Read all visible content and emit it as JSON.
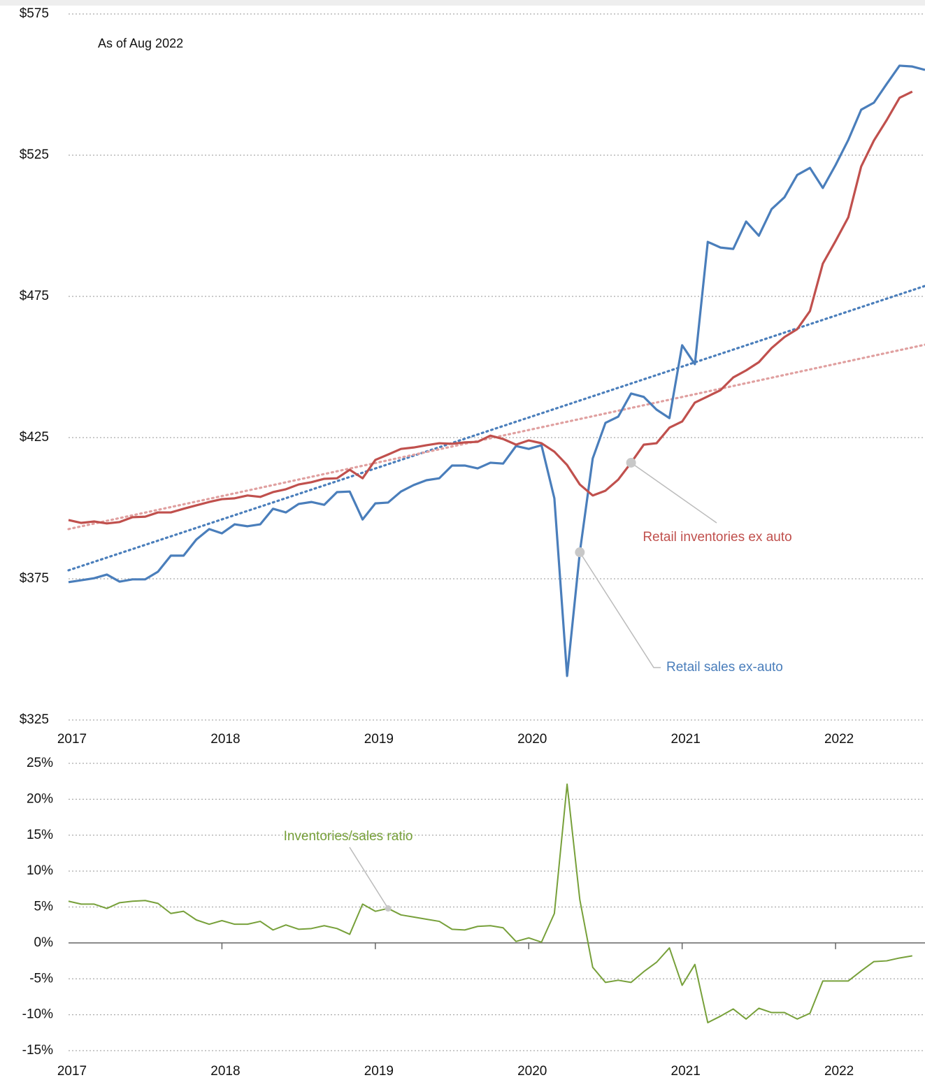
{
  "chart_data": [
    {
      "type": "line",
      "subtitle": "As of Aug 2022",
      "x": [
        2017,
        2017.083,
        2017.167,
        2017.25,
        2017.333,
        2017.417,
        2017.5,
        2017.583,
        2017.667,
        2017.75,
        2017.833,
        2017.917,
        2018,
        2018.083,
        2018.167,
        2018.25,
        2018.333,
        2018.417,
        2018.5,
        2018.583,
        2018.667,
        2018.75,
        2018.833,
        2018.917,
        2019,
        2019.083,
        2019.167,
        2019.25,
        2019.333,
        2019.417,
        2019.5,
        2019.583,
        2019.667,
        2019.75,
        2019.833,
        2019.917,
        2020,
        2020.083,
        2020.167,
        2020.25,
        2020.333,
        2020.417,
        2020.5,
        2020.583,
        2020.667,
        2020.75,
        2020.833,
        2020.917,
        2021,
        2021.083,
        2021.167,
        2021.25,
        2021.333,
        2021.417,
        2021.5,
        2021.583,
        2021.667,
        2021.75,
        2021.833,
        2021.917,
        2022,
        2022.083,
        2022.167,
        2022.25,
        2022.333,
        2022.417,
        2022.5,
        2022.583
      ],
      "xlim": [
        2017,
        2022.583
      ],
      "xticks": [
        2017,
        2018,
        2019,
        2020,
        2021,
        2022
      ],
      "ylim": [
        325,
        575
      ],
      "yticks": [
        {
          "value": 325,
          "label": "$325"
        },
        {
          "value": 375,
          "label": "$375"
        },
        {
          "value": 425,
          "label": "$425"
        },
        {
          "value": 475,
          "label": "$475"
        },
        {
          "value": 525,
          "label": "$525"
        },
        {
          "value": 575,
          "label": "$575"
        }
      ],
      "grid": true,
      "series": [
        {
          "name": "Retail sales ex-auto",
          "color": "#4a7ebb",
          "values": [
            373.8,
            374.5,
            375.2,
            376.5,
            374,
            374.8,
            374.8,
            377.5,
            383.2,
            383.2,
            388.9,
            392.6,
            391.1,
            394.3,
            393.6,
            394.3,
            399.8,
            398.5,
            401.5,
            402.2,
            401.2,
            405.7,
            405.9,
            396,
            401.7,
            402,
            405.9,
            408.2,
            409.9,
            410.6,
            415.1,
            415.1,
            414.1,
            416.1,
            415.8,
            422,
            421,
            422.3,
            403.5,
            340.6,
            384.4,
            417.6,
            430.2,
            432.4,
            440.6,
            439.4,
            434.9,
            431.9,
            457.7,
            451,
            494.3,
            492.3,
            491.8,
            501.5,
            496.5,
            505.9,
            510.1,
            518,
            520.5,
            513.4,
            521.5,
            530.4,
            541.1,
            543.6,
            550.2,
            556.7,
            556.4,
            555.2
          ]
        },
        {
          "name": "Retail inventories ex auto",
          "color": "#c0504d",
          "values": [
            395.8,
            394.8,
            395.3,
            394.6,
            395.1,
            396.8,
            397,
            398.5,
            398.5,
            399.8,
            401,
            402.2,
            403.2,
            403.5,
            404.5,
            404,
            405.7,
            406.7,
            408.4,
            409.2,
            410.4,
            410.6,
            413.6,
            410.6,
            417.1,
            419,
            421,
            421.5,
            422.3,
            423,
            422.8,
            423.3,
            423.5,
            425.7,
            424.5,
            422.5,
            424,
            423,
            420,
            415.3,
            408.4,
            404.5,
            406.2,
            410.1,
            416.1,
            422.5,
            423,
            428.5,
            430.7,
            437.4,
            439.6,
            441.8,
            446.3,
            448.8,
            451.7,
            456.7,
            460.6,
            463.4,
            469.8,
            486.6,
            494.6,
            503,
            521,
            530.2,
            537.4,
            545.3,
            547.5,
            null
          ]
        }
      ],
      "trends": [
        {
          "color": "#4a7ebb",
          "x": [
            2017,
            2022.583
          ],
          "values": [
            378,
            478.7
          ]
        },
        {
          "color": "#e0a0a0",
          "x": [
            2017,
            2022.583
          ],
          "values": [
            392.6,
            457.9
          ]
        }
      ]
    },
    {
      "type": "line",
      "x": [
        2017,
        2017.083,
        2017.167,
        2017.25,
        2017.333,
        2017.417,
        2017.5,
        2017.583,
        2017.667,
        2017.75,
        2017.833,
        2017.917,
        2018,
        2018.083,
        2018.167,
        2018.25,
        2018.333,
        2018.417,
        2018.5,
        2018.583,
        2018.667,
        2018.75,
        2018.833,
        2018.917,
        2019,
        2019.083,
        2019.167,
        2019.25,
        2019.333,
        2019.417,
        2019.5,
        2019.583,
        2019.667,
        2019.75,
        2019.833,
        2019.917,
        2020,
        2020.083,
        2020.167,
        2020.25,
        2020.333,
        2020.417,
        2020.5,
        2020.583,
        2020.667,
        2020.75,
        2020.833,
        2020.917,
        2021,
        2021.083,
        2021.167,
        2021.25,
        2021.333,
        2021.417,
        2021.5,
        2021.583,
        2021.667,
        2021.75,
        2021.833,
        2021.917,
        2022,
        2022.083,
        2022.167,
        2022.25,
        2022.333,
        2022.417,
        2022.5
      ],
      "xlim": [
        2017,
        2022.583
      ],
      "xticks": [
        2017,
        2018,
        2019,
        2020,
        2021,
        2022
      ],
      "ylim": [
        -15,
        25
      ],
      "yticks": [
        {
          "value": -15,
          "label": "-15%"
        },
        {
          "value": -10,
          "label": "-10%"
        },
        {
          "value": -5,
          "label": "-5%"
        },
        {
          "value": 0,
          "label": "0%"
        },
        {
          "value": 5,
          "label": "5%"
        },
        {
          "value": 10,
          "label": "10%"
        },
        {
          "value": 15,
          "label": "15%"
        },
        {
          "value": 20,
          "label": "20%"
        },
        {
          "value": 25,
          "label": "25%"
        }
      ],
      "grid": true,
      "series": [
        {
          "name": "Inventories/sales ratio",
          "color": "#77a03a",
          "values": [
            5.8,
            5.4,
            5.4,
            4.8,
            5.6,
            5.8,
            5.9,
            5.5,
            4.1,
            4.4,
            3.2,
            2.6,
            3.1,
            2.6,
            2.6,
            3,
            1.8,
            2.5,
            1.9,
            2,
            2.4,
            2,
            1.2,
            5.4,
            4.4,
            4.8,
            3.9,
            3.6,
            3.3,
            3,
            1.9,
            1.8,
            2.3,
            2.4,
            2.1,
            0.2,
            0.7,
            0.1,
            4.1,
            22.1,
            6,
            -3.4,
            -5.5,
            -5.2,
            -5.5,
            -4,
            -2.7,
            -0.7,
            -5.9,
            -3,
            -11.1,
            -10.2,
            -9.2,
            -10.6,
            -9.1,
            -9.7,
            -9.7,
            -10.6,
            -9.8,
            -5.3,
            -5.3,
            -5.3,
            -3.9,
            -2.6,
            -2.5,
            -2.1,
            -1.8
          ]
        }
      ]
    }
  ]
}
